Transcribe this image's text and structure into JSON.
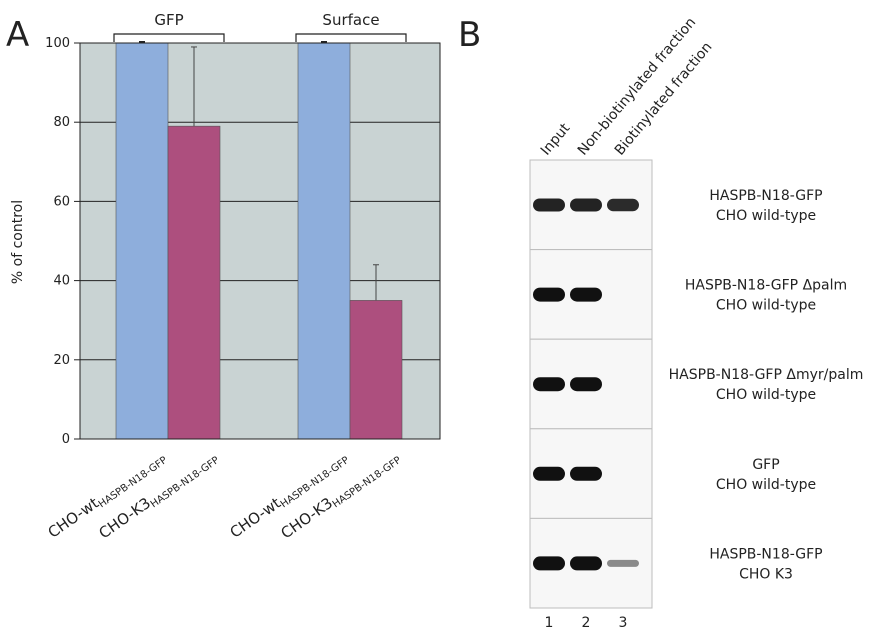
{
  "panel_a_letter": "A",
  "panel_b_letter": "B",
  "chart_data": {
    "type": "bar",
    "title": "",
    "xlabel": "",
    "ylabel": "% of control",
    "ylim": [
      0,
      100
    ],
    "yticks": [
      0,
      20,
      40,
      60,
      80,
      100
    ],
    "grid": true,
    "groups": [
      "GFP",
      "Surface"
    ],
    "bars": [
      {
        "group": "GFP",
        "label_main": "CHO-wt",
        "label_sub": "HASPB-N18-GFP",
        "value": 100,
        "error": 0,
        "color": "#8eaedc"
      },
      {
        "group": "GFP",
        "label_main": "CHO-K3",
        "label_sub": "HASPB-N18-GFP",
        "value": 79,
        "error": 20,
        "color": "#ad4f7e"
      },
      {
        "group": "Surface",
        "label_main": "CHO-wt",
        "label_sub": "HASPB-N18-GFP",
        "value": 100,
        "error": 0,
        "color": "#8eaedc"
      },
      {
        "group": "Surface",
        "label_main": "CHO-K3",
        "label_sub": "HASPB-N18-GFP",
        "value": 35,
        "error": 9,
        "color": "#ad4f7e"
      }
    ],
    "plot_background": "#c9d3d3"
  },
  "blot": {
    "lane_headers": [
      "Input",
      "Non-biotinylated fraction",
      "Biotinylated fraction"
    ],
    "lane_numbers": [
      "1",
      "2",
      "3"
    ],
    "rows": [
      {
        "line1": "HASPB-N18-GFP",
        "line2": "CHO wild-type",
        "bands": [
          0.9,
          0.9,
          0.85
        ]
      },
      {
        "line1": "HASPB-N18-GFP Δpalm",
        "line2": "CHO wild-type",
        "bands": [
          1,
          1,
          0
        ]
      },
      {
        "line1": "HASPB-N18-GFP Δmyr/palm",
        "line2": "CHO wild-type",
        "bands": [
          1,
          1,
          0
        ]
      },
      {
        "line1": "GFP",
        "line2": "CHO wild-type",
        "bands": [
          1,
          1,
          0
        ]
      },
      {
        "line1": "HASPB-N18-GFP",
        "line2": "CHO K3",
        "bands": [
          1,
          1,
          0.3
        ]
      }
    ]
  }
}
